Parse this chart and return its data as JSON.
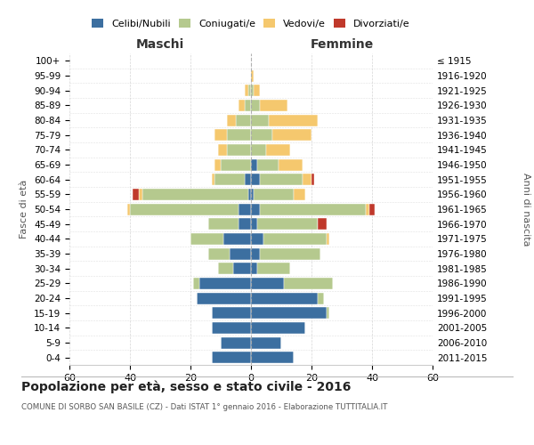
{
  "age_groups": [
    "0-4",
    "5-9",
    "10-14",
    "15-19",
    "20-24",
    "25-29",
    "30-34",
    "35-39",
    "40-44",
    "45-49",
    "50-54",
    "55-59",
    "60-64",
    "65-69",
    "70-74",
    "75-79",
    "80-84",
    "85-89",
    "90-94",
    "95-99",
    "100+"
  ],
  "birth_years": [
    "2011-2015",
    "2006-2010",
    "2001-2005",
    "1996-2000",
    "1991-1995",
    "1986-1990",
    "1981-1985",
    "1976-1980",
    "1971-1975",
    "1966-1970",
    "1961-1965",
    "1956-1960",
    "1951-1955",
    "1946-1950",
    "1941-1945",
    "1936-1940",
    "1931-1935",
    "1926-1930",
    "1921-1925",
    "1916-1920",
    "≤ 1915"
  ],
  "males": {
    "celibi": [
      13,
      10,
      13,
      13,
      18,
      17,
      6,
      7,
      9,
      4,
      4,
      1,
      2,
      0,
      0,
      0,
      0,
      0,
      0,
      0,
      0
    ],
    "coniugati": [
      0,
      0,
      0,
      0,
      0,
      2,
      5,
      7,
      11,
      10,
      36,
      35,
      10,
      10,
      8,
      8,
      5,
      2,
      1,
      0,
      0
    ],
    "vedovi": [
      0,
      0,
      0,
      0,
      0,
      0,
      0,
      0,
      0,
      0,
      1,
      1,
      1,
      2,
      3,
      4,
      3,
      2,
      1,
      0,
      0
    ],
    "divorziati": [
      0,
      0,
      0,
      0,
      0,
      0,
      0,
      0,
      0,
      0,
      0,
      2,
      0,
      0,
      0,
      0,
      0,
      0,
      0,
      0,
      0
    ]
  },
  "females": {
    "nubili": [
      14,
      10,
      18,
      25,
      22,
      11,
      2,
      3,
      4,
      2,
      3,
      1,
      3,
      2,
      0,
      0,
      0,
      0,
      0,
      0,
      0
    ],
    "coniugate": [
      0,
      0,
      0,
      1,
      2,
      16,
      11,
      20,
      21,
      20,
      35,
      13,
      14,
      7,
      5,
      7,
      6,
      3,
      1,
      0,
      0
    ],
    "vedove": [
      0,
      0,
      0,
      0,
      0,
      0,
      0,
      0,
      1,
      0,
      1,
      4,
      3,
      8,
      8,
      13,
      16,
      9,
      2,
      1,
      0
    ],
    "divorziate": [
      0,
      0,
      0,
      0,
      0,
      0,
      0,
      0,
      0,
      3,
      2,
      0,
      1,
      0,
      0,
      0,
      0,
      0,
      0,
      0,
      0
    ]
  },
  "colors": {
    "celibi": "#3c6fa0",
    "coniugati": "#b5c98e",
    "vedovi": "#f5c86e",
    "divorziati": "#c0392b"
  },
  "title": "Popolazione per età, sesso e stato civile - 2016",
  "subtitle": "COMUNE DI SORBO SAN BASILE (CZ) - Dati ISTAT 1° gennaio 2016 - Elaborazione TUTTITALIA.IT",
  "xlabel_left": "Maschi",
  "xlabel_right": "Femmine",
  "ylabel_left": "Fasce di età",
  "ylabel_right": "Anni di nascita",
  "xlim": 60,
  "background_color": "#ffffff",
  "grid_color": "#cccccc"
}
